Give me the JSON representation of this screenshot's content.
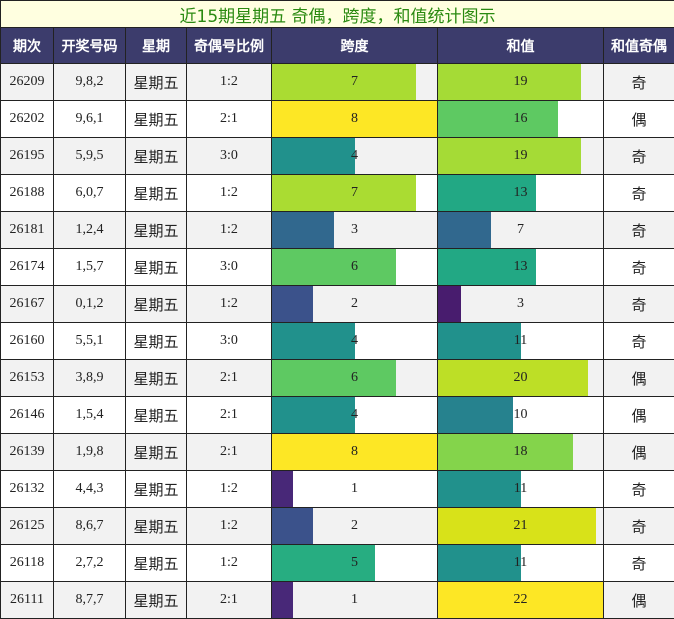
{
  "title": "近15期星期五 奇偶，跨度，和值统计图示",
  "headers": [
    "期次",
    "开奖号码",
    "星期",
    "奇偶号比例",
    "跨度",
    "和值",
    "和值奇偶"
  ],
  "rows": [
    {
      "issue": "26209",
      "numbers": "9,8,2",
      "weekday": "星期五",
      "ratio": "1:2",
      "span": 7,
      "sum": 19,
      "parity": "奇"
    },
    {
      "issue": "26202",
      "numbers": "9,6,1",
      "weekday": "星期五",
      "ratio": "2:1",
      "span": 8,
      "sum": 16,
      "parity": "偶"
    },
    {
      "issue": "26195",
      "numbers": "5,9,5",
      "weekday": "星期五",
      "ratio": "3:0",
      "span": 4,
      "sum": 19,
      "parity": "奇"
    },
    {
      "issue": "26188",
      "numbers": "6,0,7",
      "weekday": "星期五",
      "ratio": "1:2",
      "span": 7,
      "sum": 13,
      "parity": "奇"
    },
    {
      "issue": "26181",
      "numbers": "1,2,4",
      "weekday": "星期五",
      "ratio": "1:2",
      "span": 3,
      "sum": 7,
      "parity": "奇"
    },
    {
      "issue": "26174",
      "numbers": "1,5,7",
      "weekday": "星期五",
      "ratio": "3:0",
      "span": 6,
      "sum": 13,
      "parity": "奇"
    },
    {
      "issue": "26167",
      "numbers": "0,1,2",
      "weekday": "星期五",
      "ratio": "1:2",
      "span": 2,
      "sum": 3,
      "parity": "奇"
    },
    {
      "issue": "26160",
      "numbers": "5,5,1",
      "weekday": "星期五",
      "ratio": "3:0",
      "span": 4,
      "sum": 11,
      "parity": "奇"
    },
    {
      "issue": "26153",
      "numbers": "3,8,9",
      "weekday": "星期五",
      "ratio": "2:1",
      "span": 6,
      "sum": 20,
      "parity": "偶"
    },
    {
      "issue": "26146",
      "numbers": "1,5,4",
      "weekday": "星期五",
      "ratio": "2:1",
      "span": 4,
      "sum": 10,
      "parity": "偶"
    },
    {
      "issue": "26139",
      "numbers": "1,9,8",
      "weekday": "星期五",
      "ratio": "2:1",
      "span": 8,
      "sum": 18,
      "parity": "偶"
    },
    {
      "issue": "26132",
      "numbers": "4,4,3",
      "weekday": "星期五",
      "ratio": "1:2",
      "span": 1,
      "sum": 11,
      "parity": "奇"
    },
    {
      "issue": "26125",
      "numbers": "8,6,7",
      "weekday": "星期五",
      "ratio": "1:2",
      "span": 2,
      "sum": 21,
      "parity": "奇"
    },
    {
      "issue": "26118",
      "numbers": "2,7,2",
      "weekday": "星期五",
      "ratio": "1:2",
      "span": 5,
      "sum": 11,
      "parity": "奇"
    },
    {
      "issue": "26111",
      "numbers": "8,7,7",
      "weekday": "星期五",
      "ratio": "2:1",
      "span": 1,
      "sum": 22,
      "parity": "偶"
    }
  ],
  "scales": {
    "span_max": 8,
    "sum_max": 22
  },
  "colors": {
    "span": {
      "1": "#482878",
      "2": "#3b528b",
      "3": "#31688e",
      "4": "#21918c",
      "5": "#27ad81",
      "6": "#5ec962",
      "7": "#aadc32",
      "8": "#fde725"
    },
    "sum": {
      "3": "#481c6e",
      "7": "#31688e",
      "10": "#26828e",
      "11": "#21918c",
      "13": "#22a884",
      "16": "#5ec962",
      "18": "#84d44b",
      "19": "#a5db36",
      "20": "#bddf26",
      "21": "#d8e219",
      "22": "#fde725"
    }
  }
}
